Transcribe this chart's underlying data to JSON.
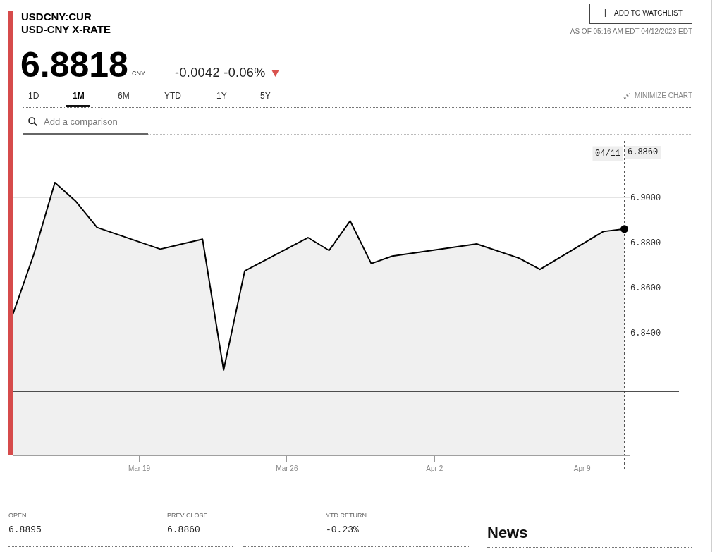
{
  "chart_data": {
    "type": "area",
    "title": "USDCNY:CUR",
    "subtitle": "USD-CNY X-RATE",
    "series": [
      {
        "color": "#000000",
        "x": [
          "2023-03-13",
          "2023-03-14",
          "2023-03-15",
          "2023-03-16",
          "2023-03-17",
          "2023-03-20",
          "2023-03-22",
          "2023-03-23",
          "2023-03-24",
          "2023-03-27",
          "2023-03-28",
          "2023-03-29",
          "2023-03-30",
          "2023-03-31",
          "2023-04-04",
          "2023-04-06",
          "2023-04-07",
          "2023-04-10",
          "2023-04-11"
        ],
        "values": [
          6.848,
          6.8747,
          6.9066,
          6.8982,
          6.8867,
          6.8771,
          6.8815,
          6.8235,
          6.8674,
          6.8822,
          6.8765,
          6.8896,
          6.8707,
          6.874,
          6.8794,
          6.8731,
          6.8681,
          6.8849,
          6.886
        ]
      },
      {
        "type": "scatter",
        "color": "#000000",
        "x": [
          "2023-04-11"
        ],
        "values": [
          6.886
        ]
      }
    ],
    "xlim": [
      "2023-03-13",
      "2023-04-11T06:00"
    ],
    "ylim": [
      6.786,
      6.925
    ],
    "xticks": [
      {
        "value": "2023-03-19",
        "label": "Mar 19"
      },
      {
        "value": "2023-03-26",
        "label": "Mar 26"
      },
      {
        "value": "2023-04-02",
        "label": "Apr 2"
      },
      {
        "value": "2023-04-09",
        "label": "Apr 9"
      }
    ],
    "yticks": [
      {
        "value": 6.84,
        "label": "6.8400"
      },
      {
        "value": 6.86,
        "label": "6.8600"
      },
      {
        "value": 6.88,
        "label": "6.8800"
      },
      {
        "value": 6.9,
        "label": "6.9000"
      }
    ],
    "grid": "y",
    "line_style": "solid",
    "ref_lines": [
      {
        "axis": "x",
        "value": "2023-04-11",
        "label": "04/11",
        "line_style": "dotted",
        "color": "#555555"
      },
      {
        "axis": "y",
        "value": 6.814,
        "color": "#333333"
      }
    ],
    "annotations": [
      "6.8818",
      "CNY",
      "-0.0042 -0.06%",
      "1D",
      "1M",
      "6M",
      "YTD",
      "1Y",
      "5Y",
      "MINIMIZE CHART",
      "Add a comparison",
      "ADD TO WATCHLIST",
      "AS OF 05:16 AM EDT 04/12/2023 EDT",
      "6.8860",
      "OPEN",
      "6.8895",
      "PREV CLOSE",
      "6.8860",
      "YTD RETURN",
      "-0.23%",
      "News"
    ]
  }
}
